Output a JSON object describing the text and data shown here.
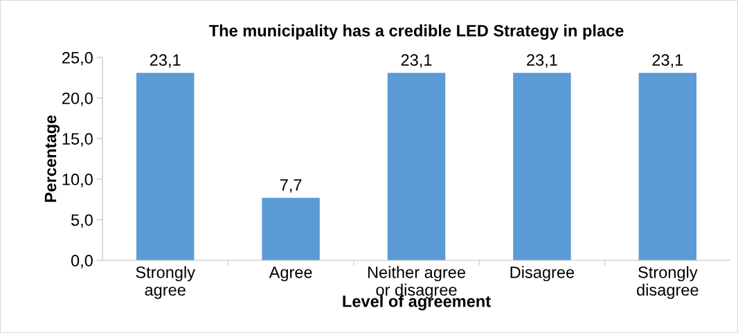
{
  "chart_data": {
    "type": "bar",
    "title": "The municipality has a credible LED Strategy in place",
    "xlabel": "Level of agreement",
    "ylabel": "Percentage",
    "categories": [
      "Strongly\nagree",
      "Agree",
      "Neither agree\nor disagree",
      "Disagree",
      "Strongly\ndisagree"
    ],
    "values": [
      23.1,
      7.7,
      23.1,
      23.1,
      23.1
    ],
    "value_labels": [
      "23,1",
      "7,7",
      "23,1",
      "23,1",
      "23,1"
    ],
    "color": "#5b9bd5",
    "ylim": [
      0,
      25
    ],
    "yticks": [
      {
        "value": 0,
        "label": "0,0"
      },
      {
        "value": 5,
        "label": "5,0"
      },
      {
        "value": 10,
        "label": "10,0"
      },
      {
        "value": 15,
        "label": "15,0"
      },
      {
        "value": 20,
        "label": "20,0"
      },
      {
        "value": 25,
        "label": "25,0"
      }
    ],
    "grid": false,
    "legend": false
  }
}
